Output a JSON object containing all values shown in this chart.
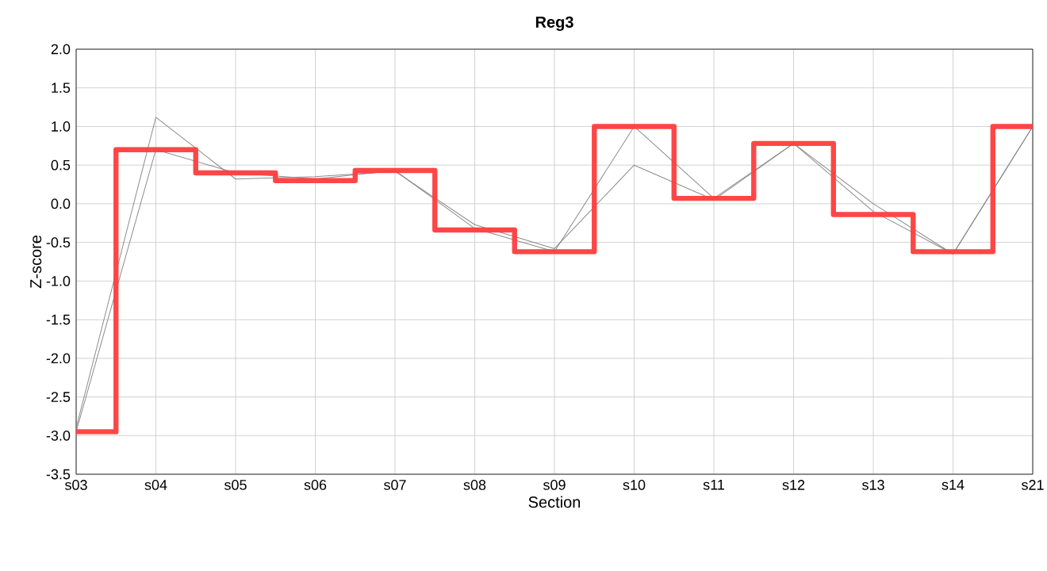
{
  "chart_data": {
    "type": "line",
    "title": "Reg3",
    "xlabel": "Section",
    "ylabel": "Z-score",
    "categories": [
      "s03",
      "s04",
      "s05",
      "s06",
      "s07",
      "s08",
      "s09",
      "s10",
      "s11",
      "s12",
      "s13",
      "s14",
      "s21"
    ],
    "series": [
      {
        "color": "#808080",
        "values": [
          -2.9,
          1.12,
          0.32,
          0.35,
          0.42,
          -0.27,
          -0.58,
          0.5,
          0.05,
          0.78,
          0.0,
          -0.65,
          1.0
        ]
      },
      {
        "color": "#808080",
        "values": [
          -2.95,
          0.7,
          0.4,
          0.32,
          0.43,
          -0.32,
          -0.62,
          1.0,
          0.07,
          0.78,
          -0.1,
          -0.65,
          1.0
        ]
      },
      {
        "type": "step",
        "color": "#ff3c3c",
        "values": [
          -2.95,
          0.7,
          0.4,
          0.3,
          0.43,
          -0.34,
          -0.62,
          1.0,
          0.07,
          0.78,
          -0.14,
          -0.62,
          1.0
        ]
      }
    ],
    "ylim": [
      -3.5,
      2.0
    ],
    "yticks": [
      {
        "value": -3.5,
        "label": "-3.5"
      },
      {
        "value": -3,
        "label": "-3.0"
      },
      -2.5,
      {
        "value": -2,
        "label": "-2.0"
      },
      -1.5,
      {
        "value": -1,
        "label": "-1.0"
      },
      -0.5,
      {
        "value": 0,
        "label": "0.0"
      },
      0.5,
      {
        "value": 1,
        "label": "1.0"
      },
      1.5,
      {
        "value": 2,
        "label": "2.0"
      }
    ],
    "grid": true
  }
}
